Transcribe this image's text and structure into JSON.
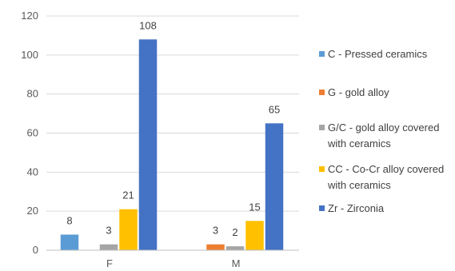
{
  "chart_data": {
    "type": "bar",
    "categories": [
      "F",
      "M"
    ],
    "series": [
      {
        "name": "C - Pressed ceramics",
        "color": "#5B9BD5",
        "values": [
          8,
          null
        ]
      },
      {
        "name": "G - gold alloy",
        "color": "#ED7D31",
        "values": [
          null,
          3
        ]
      },
      {
        "name": "G/C - gold alloy covered with ceramics",
        "legend_lines": [
          "G/C - gold alloy covered",
          "with ceramics"
        ],
        "color": "#A5A5A5",
        "values": [
          3,
          2
        ]
      },
      {
        "name": "CC - Co-Cr alloy covered with ceramics",
        "legend_lines": [
          "CC - Co-Cr alloy covered",
          "with ceramics"
        ],
        "color": "#FFC000",
        "values": [
          21,
          15
        ]
      },
      {
        "name": "Zr - Zirconia",
        "color": "#4472C4",
        "values": [
          108,
          65
        ]
      }
    ],
    "ylim": [
      0,
      120
    ],
    "yticks": [
      0,
      20,
      40,
      60,
      80,
      100,
      120
    ],
    "grid": "horizontal",
    "legend_position": "right",
    "title": "",
    "xlabel": "",
    "ylabel": ""
  }
}
